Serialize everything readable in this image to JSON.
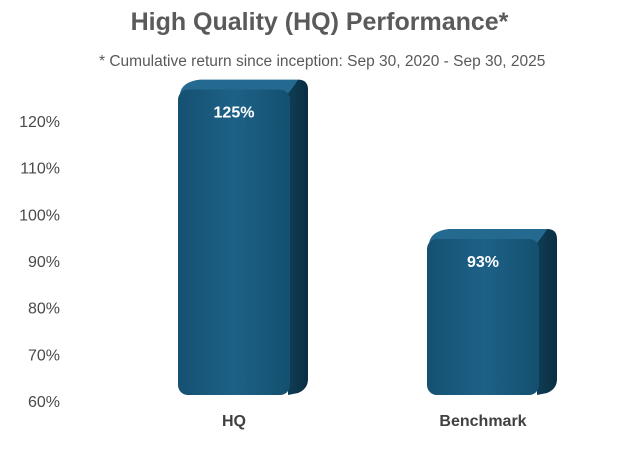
{
  "chart_data": {
    "type": "bar",
    "title": "High Quality (HQ) Performance*",
    "subtitle": "* Cumulative return since inception: Sep 30, 2020 - Sep 30, 2025",
    "categories": [
      "HQ",
      "Benchmark"
    ],
    "values": [
      125,
      93
    ],
    "data_labels": [
      "125%",
      "93%"
    ],
    "y_ticks": [
      "60%",
      "70%",
      "80%",
      "90%",
      "100%",
      "110%",
      "120%"
    ],
    "ylim": [
      60,
      125
    ],
    "xlabel": "",
    "ylabel": "",
    "grid": false,
    "legend": "none",
    "style": "3d-column",
    "colors": {
      "bar_front": "#1b5c80",
      "bar_side": "#0e3a52",
      "bar_top": "#24698f",
      "text": "#595959"
    }
  }
}
